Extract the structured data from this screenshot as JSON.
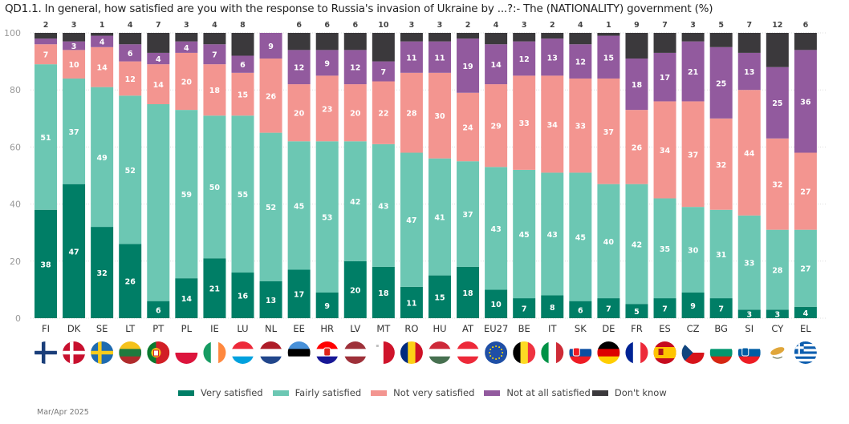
{
  "chart_data": {
    "type": "bar",
    "stacked": true,
    "title": "QD1.1. In general, how satisfied are you with the response to Russia's invasion of Ukraine by ...?:- The (NATIONALITY) government (%)",
    "xlabel": "",
    "ylabel": "",
    "ylim": [
      0,
      100
    ],
    "yticks": [
      0,
      20,
      40,
      60,
      80,
      100
    ],
    "grid": true,
    "legend_position": "bottom",
    "categories": [
      "FI",
      "DK",
      "SE",
      "LT",
      "PT",
      "PL",
      "IE",
      "LU",
      "NL",
      "EE",
      "HR",
      "LV",
      "MT",
      "RO",
      "HU",
      "AT",
      "EU27",
      "BE",
      "IT",
      "SK",
      "DE",
      "FR",
      "ES",
      "CZ",
      "BG",
      "SI",
      "CY",
      "EL"
    ],
    "series": [
      {
        "name": "Very satisfied",
        "color": "#007e66",
        "values": [
          38,
          47,
          32,
          26,
          6,
          14,
          21,
          16,
          13,
          17,
          9,
          20,
          18,
          11,
          15,
          18,
          10,
          7,
          8,
          6,
          7,
          5,
          7,
          9,
          7,
          3,
          3,
          4
        ]
      },
      {
        "name": "Fairly satisfied",
        "color": "#6cc7b3",
        "values": [
          51,
          37,
          49,
          52,
          69,
          59,
          50,
          55,
          52,
          45,
          53,
          42,
          43,
          47,
          41,
          37,
          43,
          45,
          43,
          45,
          40,
          42,
          35,
          30,
          31,
          33,
          28,
          27
        ]
      },
      {
        "name": "Not very satisfied",
        "color": "#f39590",
        "values": [
          7,
          10,
          14,
          12,
          14,
          20,
          18,
          15,
          26,
          20,
          23,
          20,
          22,
          28,
          30,
          24,
          29,
          33,
          34,
          33,
          37,
          26,
          34,
          37,
          32,
          44,
          32,
          27
        ]
      },
      {
        "name": "Not at all satisfied",
        "color": "#925a9e",
        "values": [
          2,
          3,
          4,
          6,
          4,
          4,
          7,
          6,
          9,
          12,
          9,
          12,
          7,
          11,
          11,
          19,
          14,
          12,
          13,
          12,
          15,
          18,
          17,
          21,
          25,
          13,
          25,
          36
        ]
      },
      {
        "name": "Don't know",
        "color": "#3b393c",
        "values": [
          2,
          3,
          1,
          4,
          7,
          3,
          4,
          8,
          0,
          6,
          6,
          6,
          10,
          3,
          3,
          2,
          4,
          3,
          2,
          4,
          1,
          9,
          7,
          3,
          5,
          7,
          12,
          6
        ]
      }
    ],
    "hidden_labels": {
      "Not at all satisfied": [
        "FI"
      ],
      "Fairly satisfied": [
        "PT"
      ]
    },
    "top_labels_series": "Don't know"
  },
  "flags": [
    "FI",
    "DK",
    "SE",
    "LT",
    "PT",
    "PL",
    "IE",
    "LU",
    "NL",
    "EE",
    "HR",
    "LV",
    "MT",
    "RO",
    "HU",
    "AT",
    "EU27",
    "BE",
    "IT",
    "SK",
    "DE",
    "FR",
    "ES",
    "CZ",
    "BG",
    "SI",
    "CY",
    "EL"
  ],
  "legend": [
    {
      "label": "Very satisfied",
      "color": "#007e66"
    },
    {
      "label": "Fairly satisfied",
      "color": "#6cc7b3"
    },
    {
      "label": "Not very satisfied",
      "color": "#f39590"
    },
    {
      "label": "Not at all satisfied",
      "color": "#925a9e"
    },
    {
      "label": "Don't know",
      "color": "#3b393c"
    }
  ],
  "footer": "Mar/Apr 2025"
}
